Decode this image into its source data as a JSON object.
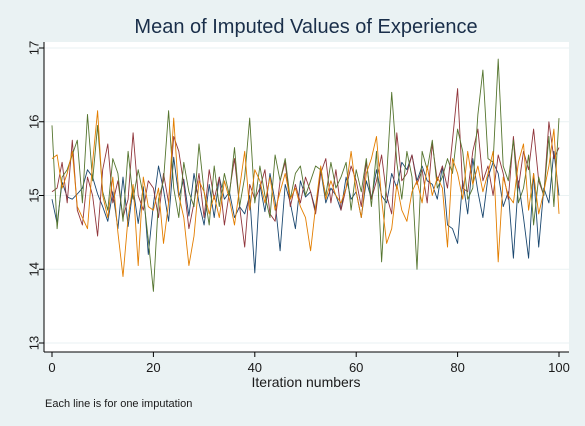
{
  "chart_data": {
    "type": "line",
    "title": "Mean of Imputed Values of Experience",
    "xlabel": "Iteration numbers",
    "ylabel": "",
    "note": "Each line is for one imputation",
    "xlim": [
      0,
      100
    ],
    "ylim": [
      13,
      17
    ],
    "x_ticks": [
      0,
      20,
      40,
      60,
      80,
      100
    ],
    "y_ticks": [
      13,
      14,
      15,
      16,
      17
    ],
    "grid": true,
    "legend": "none",
    "x": [
      0,
      1,
      2,
      3,
      4,
      5,
      6,
      7,
      8,
      9,
      10,
      11,
      12,
      13,
      14,
      15,
      16,
      17,
      18,
      19,
      20,
      21,
      22,
      23,
      24,
      25,
      26,
      27,
      28,
      29,
      30,
      31,
      32,
      33,
      34,
      35,
      36,
      37,
      38,
      39,
      40,
      41,
      42,
      43,
      44,
      45,
      46,
      47,
      48,
      49,
      50,
      51,
      52,
      53,
      54,
      55,
      56,
      57,
      58,
      59,
      60,
      61,
      62,
      63,
      64,
      65,
      66,
      67,
      68,
      69,
      70,
      71,
      72,
      73,
      74,
      75,
      76,
      77,
      78,
      79,
      80,
      81,
      82,
      83,
      84,
      85,
      86,
      87,
      88,
      89,
      90,
      91,
      92,
      93,
      94,
      95,
      96,
      97,
      98,
      99,
      100
    ],
    "series": [
      {
        "color": "#1a476f",
        "values": [
          14.95,
          14.62,
          15.18,
          14.98,
          14.95,
          15.02,
          15.1,
          15.35,
          15.25,
          15.02,
          14.85,
          14.65,
          15.05,
          14.55,
          15.25,
          14.58,
          15.1,
          14.62,
          15.12,
          14.2,
          14.88,
          15.4,
          15.08,
          14.65,
          15.52,
          14.98,
          15.22,
          14.72,
          15.3,
          14.9,
          14.6,
          15.15,
          14.7,
          15.25,
          14.95,
          15.05,
          14.7,
          14.85,
          14.75,
          15.0,
          13.95,
          15.15,
          14.78,
          15.3,
          14.92,
          14.25,
          15.15,
          14.9,
          14.55,
          15.2,
          14.98,
          15.05,
          14.8,
          15.35,
          14.9,
          15.1,
          15.0,
          14.8,
          15.25,
          14.95,
          15.05,
          14.7,
          15.2,
          14.95,
          15.35,
          15.0,
          14.9,
          15.3,
          15.1,
          15.45,
          15.35,
          15.55,
          15.2,
          15.4,
          15.2,
          15.15,
          14.95,
          15.4,
          14.6,
          14.55,
          14.35,
          15.2,
          14.75,
          15.5,
          15.05,
          14.7,
          15.25,
          15.45,
          15.3,
          14.85,
          15.05,
          14.15,
          15.2,
          14.7,
          14.15,
          15.3,
          14.3,
          15.1,
          14.9,
          15.6,
          15.0
        ]
      },
      {
        "color": "#90353b",
        "values": [
          15.05,
          15.1,
          15.45,
          14.9,
          15.75,
          14.8,
          14.6,
          15.25,
          15.0,
          14.45,
          15.35,
          15.7,
          14.9,
          15.2,
          14.7,
          14.95,
          15.85,
          15.0,
          14.8,
          15.2,
          15.1,
          14.7,
          15.3,
          14.9,
          15.8,
          15.6,
          15.15,
          14.55,
          14.9,
          15.3,
          14.7,
          15.35,
          14.95,
          15.25,
          14.6,
          15.05,
          15.5,
          14.85,
          14.3,
          15.15,
          14.95,
          15.1,
          15.35,
          14.75,
          14.65,
          15.2,
          15.45,
          14.85,
          15.15,
          14.9,
          15.25,
          15.05,
          14.75,
          15.3,
          15.5,
          14.9,
          15.35,
          14.8,
          15.1,
          15.4,
          15.2,
          14.85,
          15.45,
          14.95,
          15.2,
          15.55,
          15.0,
          14.75,
          15.85,
          15.2,
          15.3,
          15.55,
          15.15,
          15.35,
          14.9,
          15.7,
          15.2,
          15.4,
          15.1,
          15.75,
          16.45,
          15.1,
          15.05,
          15.6,
          15.9,
          15.2,
          15.4,
          15.0,
          15.55,
          15.3,
          14.95,
          15.8,
          15.1,
          15.6,
          15.35,
          15.9,
          15.2,
          15.0,
          16.0,
          15.5,
          15.65
        ]
      },
      {
        "color": "#55752f",
        "values": [
          15.95,
          14.55,
          15.25,
          15.35,
          15.55,
          15.75,
          14.9,
          16.1,
          15.2,
          15.95,
          15.05,
          14.8,
          15.5,
          15.3,
          14.65,
          15.6,
          14.95,
          15.35,
          15.0,
          14.4,
          13.7,
          14.95,
          15.2,
          16.15,
          15.1,
          14.7,
          15.45,
          15.05,
          14.85,
          15.7,
          15.05,
          14.6,
          15.4,
          14.85,
          15.3,
          15.0,
          15.65,
          14.85,
          15.25,
          16.05,
          14.9,
          15.4,
          15.0,
          14.7,
          15.55,
          15.2,
          15.5,
          14.95,
          15.3,
          15.4,
          15.0,
          15.2,
          15.4,
          15.35,
          15.0,
          15.45,
          15.1,
          15.25,
          15.45,
          14.8,
          15.35,
          15.05,
          15.5,
          14.85,
          15.6,
          14.1,
          15.25,
          16.4,
          15.45,
          14.95,
          15.6,
          15.25,
          14.0,
          15.6,
          15.35,
          15.75,
          15.1,
          15.25,
          15.5,
          15.3,
          15.9,
          15.6,
          14.95,
          15.1,
          16.1,
          16.7,
          15.5,
          15.45,
          16.85,
          15.4,
          15.2,
          15.75,
          14.9,
          15.1,
          15.55,
          14.6,
          15.25,
          15.0,
          15.8,
          14.85,
          16.05
        ]
      },
      {
        "color": "#e37e00",
        "values": [
          15.5,
          15.55,
          15.1,
          15.3,
          15.6,
          14.85,
          14.7,
          14.55,
          15.45,
          16.15,
          15.0,
          14.7,
          15.25,
          14.5,
          13.9,
          14.7,
          15.15,
          14.05,
          15.25,
          14.85,
          14.8,
          15.1,
          14.35,
          14.9,
          16.05,
          15.0,
          14.7,
          14.05,
          14.45,
          15.2,
          15.05,
          14.75,
          15.0,
          14.7,
          15.2,
          14.95,
          14.6,
          15.1,
          15.6,
          14.8,
          15.35,
          15.2,
          14.9,
          15.25,
          14.8,
          15.05,
          15.3,
          14.95,
          15.1,
          14.85,
          14.7,
          14.25,
          14.85,
          15.4,
          14.95,
          15.2,
          15.0,
          14.9,
          15.1,
          15.6,
          15.05,
          14.7,
          15.3,
          15.5,
          15.8,
          14.95,
          14.35,
          14.55,
          15.15,
          14.8,
          14.65,
          15.05,
          15.2,
          14.9,
          15.4,
          15.0,
          15.25,
          15.1,
          14.3,
          15.5,
          15.3,
          14.95,
          15.6,
          15.15,
          15.4,
          15.05,
          15.3,
          15.6,
          14.1,
          15.25,
          15.0,
          14.9,
          15.45,
          15.7,
          14.8,
          15.3,
          14.75,
          15.05,
          15.4,
          15.9,
          14.75
        ]
      }
    ]
  }
}
